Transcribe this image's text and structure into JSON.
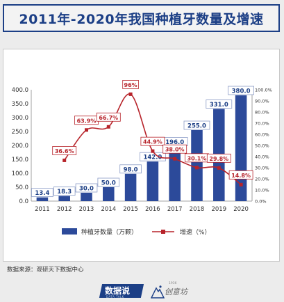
{
  "header": {
    "title": "2011年-2020年我国种植牙数量及增速"
  },
  "source": "数据来源：观研天下数据中心",
  "logo": {
    "main": "数据说",
    "sub": "DATA TALK",
    "brand": "创意坊",
    "brand_year": "1936"
  },
  "colors": {
    "bar": "#2c4a9a",
    "line": "#b7232a",
    "title": "#1c3f86"
  },
  "icons": {
    "brand_logo": "mountain-logo-icon"
  },
  "chart_data": {
    "type": "bar",
    "categories": [
      "2011",
      "2012",
      "2013",
      "2014",
      "2015",
      "2016",
      "2017",
      "2018",
      "2019",
      "2020"
    ],
    "series": [
      {
        "name": "种植牙数量（万颗）",
        "type": "bar",
        "values": [
          13.4,
          18.3,
          30.0,
          50.0,
          98.0,
          142.0,
          196.0,
          255.0,
          331.0,
          380.0
        ],
        "labels": [
          "13.4",
          "18.3",
          "30.0",
          "50.0",
          "98.0",
          "142.0",
          "196.0",
          "255.0",
          "331.0",
          "380.0"
        ]
      },
      {
        "name": "增速（%）",
        "type": "line",
        "values": [
          null,
          36.6,
          63.9,
          66.7,
          96,
          44.9,
          38.0,
          30.1,
          29.8,
          14.8
        ],
        "labels": [
          "",
          "36.6%",
          "63.9%",
          "66.7%",
          "96%",
          "44.9%",
          "38.0%",
          "30.1%",
          "29.8%",
          "14.8%"
        ]
      }
    ],
    "y_left": {
      "ylim": [
        0,
        400
      ],
      "ticks": [
        "0.0",
        "50.0",
        "100.0",
        "150.0",
        "200.0",
        "250.0",
        "300.0",
        "350.0",
        "400.0"
      ]
    },
    "y_right": {
      "ylim": [
        0,
        100
      ],
      "ticks": [
        "0.0%",
        "10.0%",
        "20.0%",
        "30.0%",
        "40.0%",
        "50.0%",
        "60.0%",
        "70.0%",
        "80.0%",
        "90.0%",
        "100.0%"
      ]
    },
    "legend_position": "bottom",
    "grid": false
  }
}
